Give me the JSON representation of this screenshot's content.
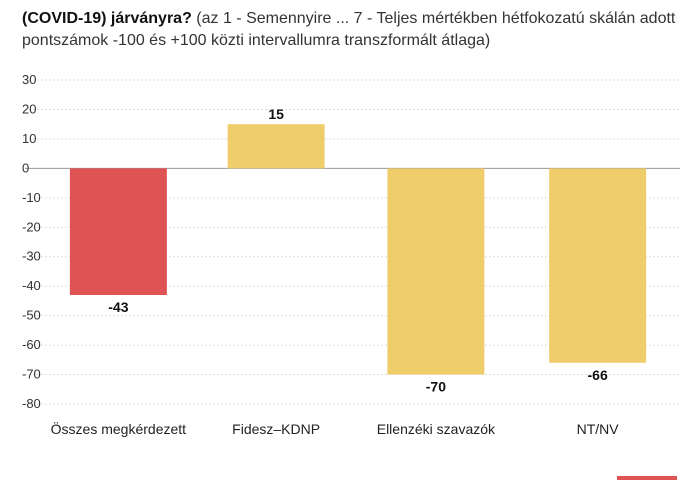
{
  "title": {
    "bold": "(COVID-19) járványra?",
    "rest": " (az 1 - Semennyire ... 7 - Teljes mértékben hétfokozatú skálán adott pontszámok -100 és +100 közti intervallumra transzformált átlaga)"
  },
  "chart_data": {
    "type": "bar",
    "categories": [
      "Összes megkérdezett",
      "Fidesz–KDNP",
      "Ellenzéki szavazók",
      "NT/NV"
    ],
    "values": [
      -43,
      15,
      -70,
      -66
    ],
    "colors": [
      "#e05355",
      "#f0cd6b",
      "#f0cd6b",
      "#f0cd6b"
    ],
    "ylim": [
      -80,
      30
    ],
    "yticks": [
      30,
      20,
      10,
      0,
      -10,
      -20,
      -30,
      -40,
      -50,
      -60,
      -70,
      -80
    ],
    "grid": true,
    "xlabel": "",
    "ylabel": ""
  }
}
